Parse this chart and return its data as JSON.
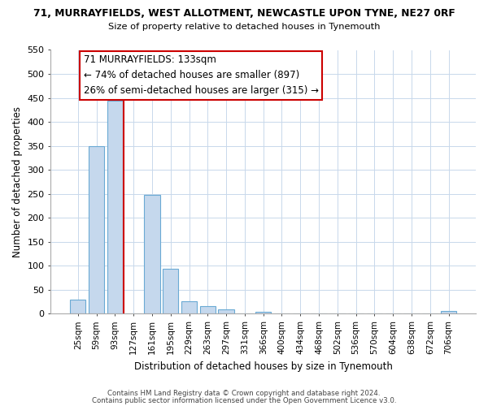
{
  "title_line1": "71, MURRAYFIELDS, WEST ALLOTMENT, NEWCASTLE UPON TYNE, NE27 0RF",
  "title_line2": "Size of property relative to detached houses in Tynemouth",
  "xlabel": "Distribution of detached houses by size in Tynemouth",
  "ylabel": "Number of detached properties",
  "categories": [
    "25sqm",
    "59sqm",
    "93sqm",
    "127sqm",
    "161sqm",
    "195sqm",
    "229sqm",
    "263sqm",
    "297sqm",
    "331sqm",
    "366sqm",
    "400sqm",
    "434sqm",
    "468sqm",
    "502sqm",
    "536sqm",
    "570sqm",
    "604sqm",
    "638sqm",
    "672sqm",
    "706sqm"
  ],
  "bar_values": [
    30,
    350,
    445,
    0,
    248,
    93,
    26,
    16,
    9,
    0,
    4,
    0,
    0,
    0,
    0,
    0,
    0,
    0,
    0,
    0,
    5
  ],
  "bar_color": "#c5d8ed",
  "bar_edge_color": "#6aaad4",
  "vline_color": "#cc0000",
  "ylim": [
    0,
    550
  ],
  "yticks": [
    0,
    50,
    100,
    150,
    200,
    250,
    300,
    350,
    400,
    450,
    500,
    550
  ],
  "annotation_title": "71 MURRAYFIELDS: 133sqm",
  "annotation_line1": "← 74% of detached houses are smaller (897)",
  "annotation_line2": "26% of semi-detached houses are larger (315) →",
  "annotation_box_color": "#ffffff",
  "annotation_box_edge": "#cc0000",
  "footer_line1": "Contains HM Land Registry data © Crown copyright and database right 2024.",
  "footer_line2": "Contains public sector information licensed under the Open Government Licence v3.0.",
  "background_color": "#ffffff",
  "grid_color": "#c8d8eb"
}
